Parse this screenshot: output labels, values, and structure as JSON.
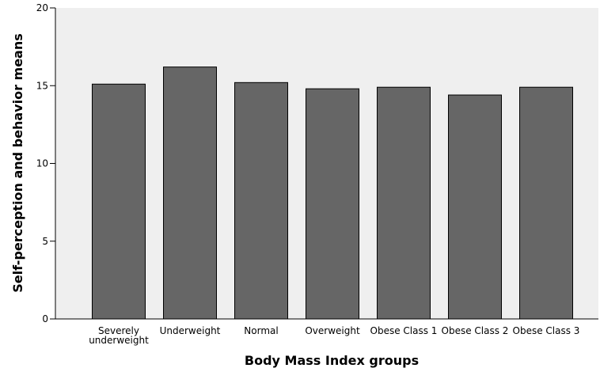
{
  "chart_data": {
    "type": "bar",
    "title": "",
    "xlabel": "Body Mass Index groups",
    "ylabel": "Self-perception and behavior means",
    "ylim": [
      0,
      20
    ],
    "yticks": [
      "0",
      "5",
      "10",
      "15",
      "20"
    ],
    "categories": [
      [
        "Severely",
        "underweight"
      ],
      [
        "Underweight"
      ],
      [
        "Normal"
      ],
      [
        "Overweight"
      ],
      [
        "Obese Class 1"
      ],
      [
        "Obese Class 2"
      ],
      [
        "Obese Class 3"
      ]
    ],
    "values": [
      15.1,
      16.2,
      15.2,
      14.8,
      14.9,
      14.4,
      14.9
    ],
    "grid": false,
    "legend": "none",
    "colors": {
      "bar": "#666666",
      "bar_stroke": "#000000",
      "plot_background": "#efefef",
      "axis": "#000000"
    }
  }
}
